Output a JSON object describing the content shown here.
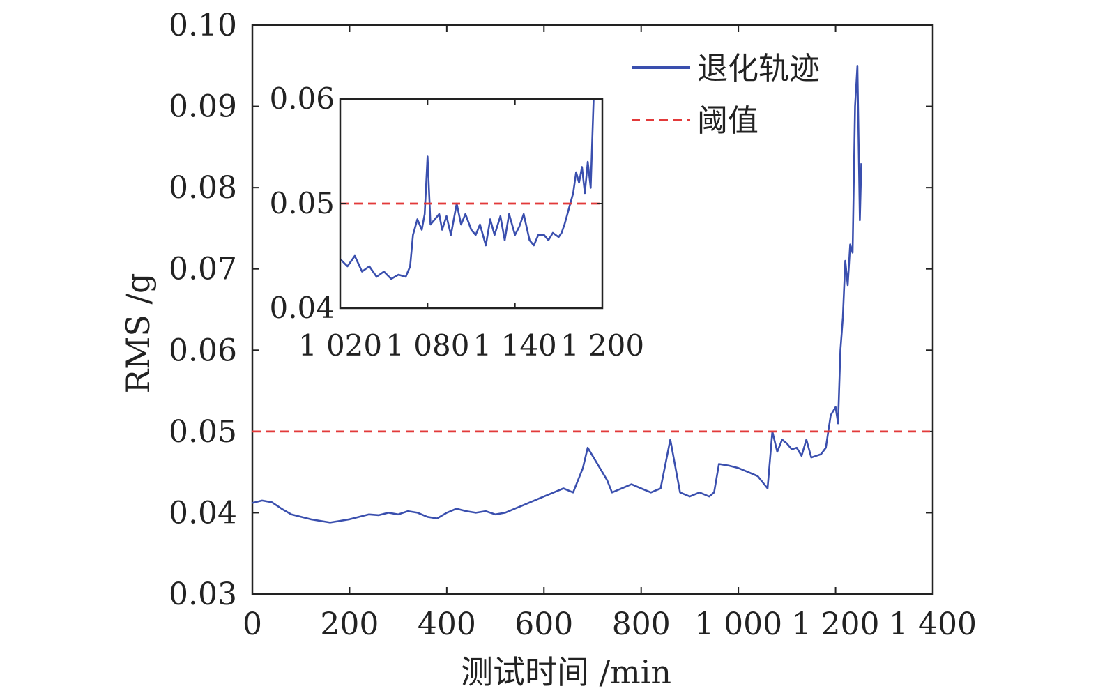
{
  "chart_data": [
    {
      "type": "line",
      "title": "",
      "xlabel": "测试时间 /min",
      "ylabel": "RMS /g",
      "xlim": [
        0,
        1400
      ],
      "ylim": [
        0.03,
        0.1
      ],
      "x_ticks": [
        0,
        200,
        400,
        600,
        800,
        1000,
        1200,
        1400
      ],
      "x_tick_labels": [
        "0",
        "200",
        "400",
        "600",
        "800",
        "1 000",
        "1 200",
        "1 400"
      ],
      "y_ticks": [
        0.03,
        0.04,
        0.05,
        0.06,
        0.07,
        0.08,
        0.09,
        0.1
      ],
      "y_tick_labels": [
        "0.03",
        "0.04",
        "0.05",
        "0.06",
        "0.07",
        "0.08",
        "0.09",
        "0.10"
      ],
      "grid": false,
      "legend_position": "top-right",
      "series": [
        {
          "name": "退化轨迹",
          "style": "solid",
          "color": "#3a4fae",
          "x": [
            0,
            20,
            40,
            60,
            80,
            100,
            120,
            140,
            160,
            180,
            200,
            220,
            240,
            260,
            280,
            300,
            320,
            340,
            360,
            380,
            400,
            420,
            440,
            460,
            480,
            500,
            520,
            540,
            560,
            580,
            600,
            620,
            640,
            660,
            680,
            690,
            700,
            710,
            720,
            730,
            740,
            760,
            780,
            800,
            820,
            840,
            860,
            880,
            900,
            920,
            940,
            950,
            960,
            980,
            1000,
            1020,
            1040,
            1060,
            1070,
            1080,
            1090,
            1100,
            1110,
            1120,
            1130,
            1140,
            1150,
            1160,
            1170,
            1180,
            1190,
            1200,
            1205,
            1210,
            1215,
            1220,
            1225,
            1230,
            1235,
            1240,
            1245,
            1250,
            1253
          ],
          "y": [
            0.0412,
            0.0415,
            0.0413,
            0.0405,
            0.0398,
            0.0395,
            0.0392,
            0.039,
            0.0388,
            0.039,
            0.0392,
            0.0395,
            0.0398,
            0.0397,
            0.04,
            0.0398,
            0.0402,
            0.04,
            0.0395,
            0.0393,
            0.04,
            0.0405,
            0.0402,
            0.04,
            0.0402,
            0.0398,
            0.04,
            0.0405,
            0.041,
            0.0415,
            0.042,
            0.0425,
            0.043,
            0.0425,
            0.0455,
            0.048,
            0.047,
            0.046,
            0.045,
            0.044,
            0.0425,
            0.043,
            0.0435,
            0.043,
            0.0425,
            0.043,
            0.049,
            0.0425,
            0.042,
            0.0425,
            0.042,
            0.0425,
            0.046,
            0.0458,
            0.0455,
            0.045,
            0.0445,
            0.043,
            0.05,
            0.0475,
            0.049,
            0.0485,
            0.0478,
            0.048,
            0.047,
            0.049,
            0.0468,
            0.047,
            0.0472,
            0.048,
            0.052,
            0.053,
            0.051,
            0.06,
            0.064,
            0.071,
            0.068,
            0.073,
            0.072,
            0.09,
            0.095,
            0.076,
            0.083
          ]
        },
        {
          "name": "阈值",
          "style": "dashed",
          "color": "#e23a3a",
          "x": [
            0,
            1400
          ],
          "y": [
            0.05,
            0.05
          ]
        }
      ]
    },
    {
      "type": "line",
      "title": "",
      "xlabel": "",
      "ylabel": "",
      "xlim": [
        1020,
        1200
      ],
      "ylim": [
        0.04,
        0.06
      ],
      "x_ticks": [
        1020,
        1080,
        1140,
        1200
      ],
      "x_tick_labels": [
        "1 020",
        "1 080",
        "1 140",
        "1 200"
      ],
      "y_ticks": [
        0.04,
        0.05,
        0.06
      ],
      "y_tick_labels": [
        "0.04",
        "0.05",
        "0.06"
      ],
      "grid": false,
      "series": [
        {
          "name": "",
          "style": "solid",
          "color": "#3a4fae",
          "x": [
            1020,
            1025,
            1030,
            1035,
            1040,
            1045,
            1050,
            1055,
            1060,
            1065,
            1068,
            1070,
            1073,
            1076,
            1078,
            1080,
            1082,
            1085,
            1088,
            1090,
            1093,
            1096,
            1100,
            1103,
            1106,
            1110,
            1113,
            1116,
            1120,
            1123,
            1126,
            1130,
            1133,
            1136,
            1140,
            1143,
            1146,
            1150,
            1153,
            1156,
            1160,
            1163,
            1166,
            1170,
            1172,
            1174,
            1176,
            1178,
            1180,
            1182,
            1184,
            1186,
            1188,
            1190,
            1192,
            1194
          ],
          "y": [
            0.0447,
            0.044,
            0.045,
            0.0435,
            0.044,
            0.043,
            0.0435,
            0.0428,
            0.0432,
            0.043,
            0.044,
            0.047,
            0.0485,
            0.0475,
            0.049,
            0.0545,
            0.048,
            0.0485,
            0.049,
            0.0475,
            0.0488,
            0.047,
            0.05,
            0.048,
            0.049,
            0.0475,
            0.047,
            0.048,
            0.046,
            0.0485,
            0.047,
            0.0488,
            0.0465,
            0.049,
            0.047,
            0.0478,
            0.049,
            0.0465,
            0.046,
            0.047,
            0.047,
            0.0465,
            0.0472,
            0.0468,
            0.0472,
            0.048,
            0.049,
            0.05,
            0.051,
            0.053,
            0.052,
            0.0535,
            0.051,
            0.054,
            0.0515,
            0.06
          ]
        },
        {
          "name": "",
          "style": "dashed",
          "color": "#e23a3a",
          "x": [
            1020,
            1200
          ],
          "y": [
            0.05,
            0.05
          ]
        }
      ]
    }
  ]
}
